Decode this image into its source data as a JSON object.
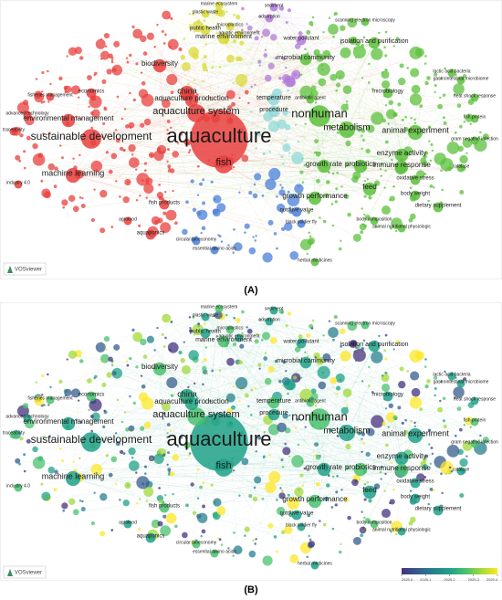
{
  "network": {
    "keywords": [
      "aquaculture",
      "fish",
      "sustainable development",
      "nonhuman",
      "aquaculture system",
      "metabolism",
      "animal experiment",
      "growth rate",
      "probiotics",
      "growth performance",
      "feed",
      "machine learning",
      "china",
      "biodiversity",
      "marine environment",
      "microbial community",
      "isolation and purification",
      "enzyme activity",
      "immune response",
      "marine ecosystem",
      "sediment",
      "plastic waste",
      "adsorption",
      "scanning electron microscopy",
      "microplastics",
      "public health",
      "water pollutant",
      "aquatic environment",
      "economics",
      "fisheries management",
      "aquaculture production",
      "environmental management",
      "procedure",
      "temperature",
      "antibiotic agent",
      "lactic acid bacteria",
      "gastrointestinal microbiome",
      "heat shock response",
      "fish protein",
      "gram negative infection",
      "catalase",
      "dietary supplement",
      "body weight",
      "essential amino acids",
      "circular bioeconomy",
      "animal nutritional physiologic",
      "black soldier fly",
      "herbal medicines",
      "industry 4.0",
      "traceability",
      "advanced technology",
      "agrofood",
      "aquaponics",
      "fish products",
      "body composition",
      "microbiology",
      "nutritive value",
      "oxidative stress"
    ]
  },
  "panel_a": {
    "logo": "VOSviewer",
    "label": "(A)"
  },
  "panel_b": {
    "logo": "VOSviewer",
    "label": "(B)",
    "color_scale": {
      "ticks": [
        {
          "value": 2025.0,
          "label": "2025.0"
        },
        {
          "value": 2025.1,
          "label": "2025.1"
        },
        {
          "value": 2025.2,
          "label": "2025.2"
        },
        {
          "value": 2025.3,
          "label": "2025.3"
        },
        {
          "value": 2025.4,
          "label": "2025.4"
        }
      ]
    }
  }
}
